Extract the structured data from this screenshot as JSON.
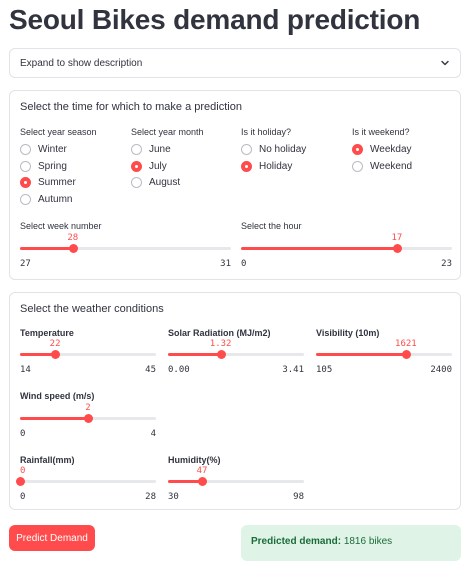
{
  "page_title": "Seoul Bikes demand prediction",
  "expander": {
    "label": "Expand to show description"
  },
  "time_section": {
    "title": "Select the time for which to make a prediction",
    "season": {
      "label": "Select year season",
      "options": [
        "Winter",
        "Spring",
        "Summer",
        "Autumn"
      ],
      "selected": "Summer"
    },
    "month": {
      "label": "Select year month",
      "options": [
        "June",
        "July",
        "August"
      ],
      "selected": "July"
    },
    "holiday": {
      "label": "Is it holiday?",
      "options": [
        "No holiday",
        "Holiday"
      ],
      "selected": "Holiday"
    },
    "weekend": {
      "label": "Is it weekend?",
      "options": [
        "Weekday",
        "Weekend"
      ],
      "selected": "Weekday"
    },
    "week": {
      "label": "Select week number",
      "value": "28",
      "min": "27",
      "max": "31",
      "fraction": 0.25
    },
    "hour": {
      "label": "Select the hour",
      "value": "17",
      "min": "0",
      "max": "23",
      "fraction": 0.739
    }
  },
  "weather_section": {
    "title": "Select the weather conditions",
    "temperature": {
      "label": "Temperature",
      "value": "22",
      "min": "14",
      "max": "45",
      "fraction": 0.258
    },
    "solar": {
      "label": "Solar Radiation (MJ/m2)",
      "value": "1.32",
      "min": "0.00",
      "max": "3.41",
      "fraction": 0.387
    },
    "visibility": {
      "label": "Visibility (10m)",
      "value": "1621",
      "min": "105",
      "max": "2400",
      "fraction": 0.661
    },
    "wind": {
      "label": "Wind speed (m/s)",
      "value": "2",
      "min": "0",
      "max": "4",
      "fraction": 0.5
    },
    "rainfall": {
      "label": "Rainfall(mm)",
      "value": "0",
      "min": "0",
      "max": "28",
      "fraction": 0.0
    },
    "humidity": {
      "label": "Humidity(%)",
      "value": "47",
      "min": "30",
      "max": "98",
      "fraction": 0.25
    }
  },
  "predict_button": {
    "label": "Predict Demand"
  },
  "result": {
    "label": "Predicted demand:",
    "value": "1816 bikes"
  },
  "colors": {
    "accent": "#ff4b4b",
    "success_bg": "#dff4e6",
    "success_text": "#1b6b3a"
  }
}
